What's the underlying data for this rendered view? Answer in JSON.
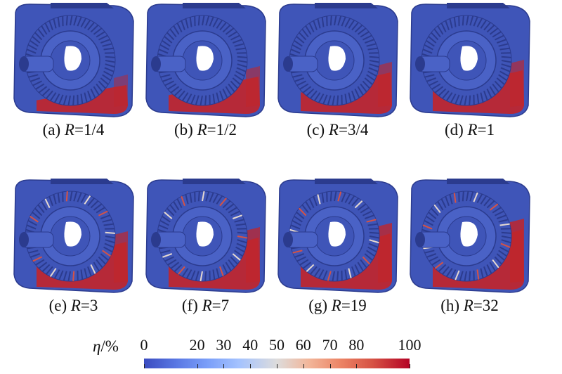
{
  "panels": [
    {
      "letter": "(a) ",
      "var": "R",
      "value": "=1/4",
      "red_level": 0.15
    },
    {
      "letter": "(b) ",
      "var": "R",
      "value": "=1/2",
      "red_level": 0.35
    },
    {
      "letter": "(c) ",
      "var": "R",
      "value": "=3/4",
      "red_level": 0.45
    },
    {
      "letter": "(d) ",
      "var": "R",
      "value": "=1",
      "red_level": 0.5
    },
    {
      "letter": "(e) ",
      "var": "R",
      "value": "=3",
      "red_level": 0.6
    },
    {
      "letter": "(f) ",
      "var": "R",
      "value": "=7",
      "red_level": 0.7
    },
    {
      "letter": "(g) ",
      "var": "R",
      "value": "=19",
      "red_level": 0.8
    },
    {
      "letter": "(h) ",
      "var": "R",
      "value": "=32",
      "red_level": 0.9
    }
  ],
  "colorbar": {
    "var": "η",
    "unit": "/%",
    "ticks": [
      {
        "label": "0",
        "value": 0
      },
      {
        "label": "20",
        "value": 20
      },
      {
        "label": "30",
        "value": 30
      },
      {
        "label": "40",
        "value": 40
      },
      {
        "label": "50",
        "value": 50
      },
      {
        "label": "60",
        "value": 60
      },
      {
        "label": "70",
        "value": 70
      },
      {
        "label": "80",
        "value": 80
      },
      {
        "label": "100",
        "value": 100
      }
    ],
    "colors": {
      "low": "#3b4cc0",
      "mid": "#dddcdc",
      "high": "#b40426"
    }
  }
}
